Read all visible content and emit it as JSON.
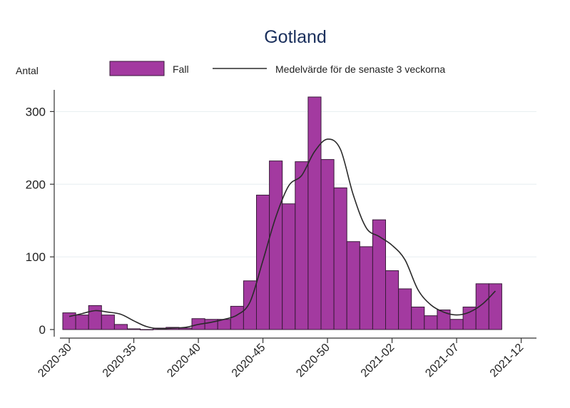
{
  "chart_data": {
    "type": "bar",
    "title": "Gotland",
    "ylabel": "Antal",
    "xlabel": "",
    "ylim": [
      0,
      320
    ],
    "yticks": [
      0,
      100,
      200,
      300
    ],
    "grid": true,
    "legend_position": "top",
    "categories": [
      "2020-30",
      "2020-31",
      "2020-32",
      "2020-33",
      "2020-34",
      "2020-35",
      "2020-36",
      "2020-37",
      "2020-38",
      "2020-39",
      "2020-40",
      "2020-41",
      "2020-42",
      "2020-43",
      "2020-44",
      "2020-45",
      "2020-46",
      "2020-47",
      "2020-48",
      "2020-49",
      "2020-50",
      "2020-51",
      "2020-52",
      "2020-53",
      "2021-01",
      "2021-02",
      "2021-03",
      "2021-04",
      "2021-05",
      "2021-06",
      "2021-07",
      "2021-08",
      "2021-09",
      "2021-10",
      "2021-11",
      "2021-12"
    ],
    "xtick_labels": [
      "2020-30",
      "2020-35",
      "2020-40",
      "2020-45",
      "2020-50",
      "2021-02",
      "2021-07",
      "2021-12"
    ],
    "series": [
      {
        "name": "Fall",
        "kind": "bar",
        "color": "#a33aa0",
        "values": [
          23,
          20,
          33,
          20,
          7,
          1,
          0,
          2,
          3,
          2,
          15,
          14,
          14,
          32,
          67,
          185,
          232,
          173,
          231,
          320,
          234,
          195,
          121,
          114,
          151,
          81,
          56,
          31,
          19,
          27,
          14,
          31,
          63,
          63,
          null,
          null
        ]
      },
      {
        "name": "Medelvärde för de senaste 3 veckorna",
        "kind": "line",
        "color": "#2a2a2a",
        "values": [
          18,
          22,
          26,
          24,
          21,
          12,
          4,
          1,
          2,
          3,
          7,
          10,
          14,
          20,
          38,
          95,
          155,
          198,
          212,
          245,
          262,
          248,
          185,
          140,
          128,
          116,
          96,
          55,
          34,
          24,
          20,
          24,
          35,
          53,
          null,
          null
        ]
      }
    ]
  }
}
